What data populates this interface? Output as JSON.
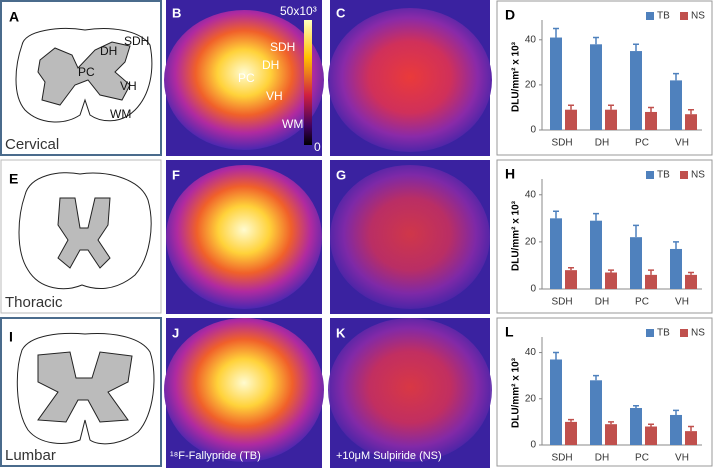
{
  "figure": {
    "rows": [
      {
        "drawing_letter": "A",
        "region": "Cervical",
        "tb_letter": "B",
        "ns_letter": "C"
      },
      {
        "drawing_letter": "E",
        "region": "Thoracic",
        "tb_letter": "F",
        "ns_letter": "G"
      },
      {
        "drawing_letter": "I",
        "region": "Lumbar",
        "tb_letter": "J",
        "ns_letter": "K"
      }
    ],
    "drawing_labels": [
      "SDH",
      "DH",
      "PC",
      "VH",
      "WM"
    ],
    "image_labels": [
      "SDH",
      "DH",
      "PC",
      "VH",
      "WM"
    ],
    "scale_max": "50x10³",
    "scale_min": "0",
    "captions": [
      "¹⁸F-Fallypride (TB)",
      "+10μM Sulpiride (NS)"
    ]
  },
  "chart_data": [
    {
      "type": "bar",
      "title": "D",
      "y_label": "DLU/mm² x 10³",
      "categories": [
        "SDH",
        "DH",
        "PC",
        "VH"
      ],
      "series": [
        {
          "name": "TB",
          "color": "#4f81bd",
          "values": [
            41,
            38,
            35,
            22
          ],
          "errors": [
            4,
            3,
            3,
            3
          ]
        },
        {
          "name": "NS",
          "color": "#c0504d",
          "values": [
            9,
            9,
            8,
            7
          ],
          "errors": [
            2,
            2,
            2,
            2
          ]
        }
      ],
      "ylim": [
        0,
        47
      ],
      "yticks": [
        0,
        20,
        40
      ],
      "legend": "top-right"
    },
    {
      "type": "bar",
      "title": "H",
      "y_label": "DLU/mm² x 10³",
      "categories": [
        "SDH",
        "DH",
        "PC",
        "VH"
      ],
      "series": [
        {
          "name": "TB",
          "color": "#4f81bd",
          "values": [
            30,
            29,
            22,
            17
          ],
          "errors": [
            3,
            3,
            5,
            3
          ]
        },
        {
          "name": "NS",
          "color": "#c0504d",
          "values": [
            8,
            7,
            6,
            6
          ],
          "errors": [
            1,
            1,
            2,
            1
          ]
        }
      ],
      "ylim": [
        0,
        45
      ],
      "yticks": [
        0,
        20,
        40
      ],
      "legend": "top-right"
    },
    {
      "type": "bar",
      "title": "L",
      "y_label": "DLU/mm² x 10³",
      "categories": [
        "SDH",
        "DH",
        "PC",
        "VH"
      ],
      "series": [
        {
          "name": "TB",
          "color": "#4f81bd",
          "values": [
            37,
            28,
            16,
            13
          ],
          "errors": [
            3,
            2,
            1,
            2
          ]
        },
        {
          "name": "NS",
          "color": "#c0504d",
          "values": [
            10,
            9,
            8,
            6
          ],
          "errors": [
            1,
            1,
            1,
            2
          ]
        }
      ],
      "ylim": [
        0,
        45
      ],
      "yticks": [
        0,
        20,
        40
      ],
      "legend": "top-right"
    }
  ]
}
